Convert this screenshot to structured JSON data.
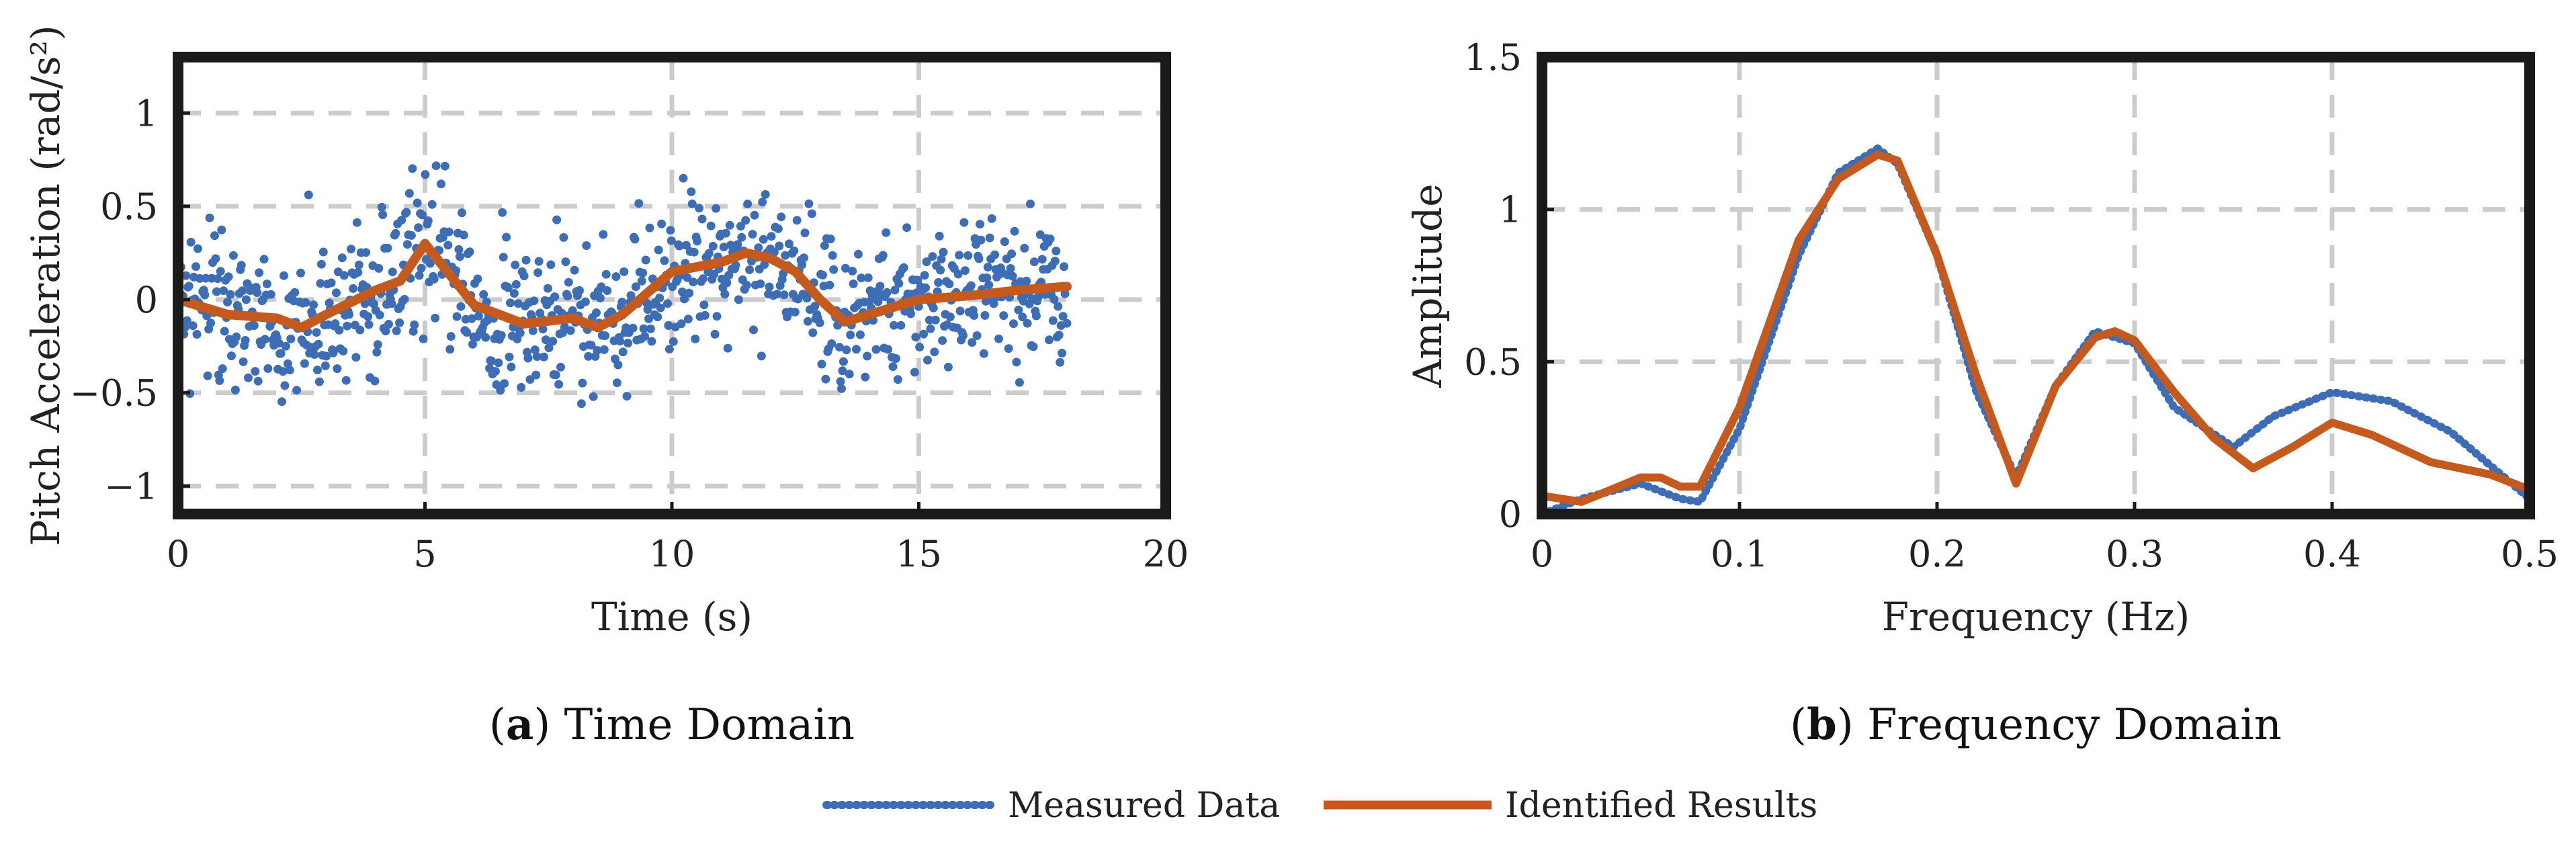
{
  "colors": {
    "measured": "#3d6db5",
    "identified": "#c55a1e",
    "grid": "#cccccc",
    "frame": "#1a1a1a"
  },
  "legend": {
    "measured_label": "Measured Data",
    "identified_label": "Identified Results"
  },
  "chart_data": [
    {
      "id": "time",
      "type": "scatter",
      "caption_letter": "a",
      "caption_text": "Time Domain",
      "xlabel": "Time (s)",
      "ylabel": "Pitch Acceleration (rad/s²)",
      "xlim": [
        0,
        20
      ],
      "ylim": [
        -1.15,
        1.3
      ],
      "xticks": [
        0,
        5,
        10,
        15,
        20
      ],
      "yticks": [
        -1,
        -0.5,
        0,
        0.5,
        1
      ],
      "xtick_labels": [
        "0",
        "5",
        "10",
        "15",
        "20"
      ],
      "ytick_labels": [
        "−1",
        "−0.5",
        "0",
        "0.5",
        "1"
      ],
      "series": [
        {
          "name": "Measured Data",
          "style": "scatter",
          "x_start": 0,
          "x_end": 18,
          "n_points": 900,
          "spread": 0.36
        },
        {
          "name": "Identified Results",
          "style": "line",
          "x": [
            0,
            1,
            2,
            2.5,
            3,
            4,
            4.5,
            5,
            5.3,
            6,
            7,
            8,
            8.5,
            9,
            10,
            11,
            11.5,
            12,
            12.5,
            13,
            13.5,
            14,
            15,
            16,
            17,
            18
          ],
          "y": [
            0,
            -0.08,
            -0.1,
            -0.15,
            -0.08,
            0.05,
            0.1,
            0.3,
            0.2,
            -0.03,
            -0.13,
            -0.1,
            -0.15,
            -0.08,
            0.15,
            0.2,
            0.25,
            0.22,
            0.15,
            0,
            -0.12,
            -0.08,
            0,
            0.02,
            0.05,
            0.07
          ]
        }
      ]
    },
    {
      "id": "freq",
      "type": "line",
      "caption_letter": "b",
      "caption_text": "Frequency Domain",
      "xlabel": "Frequency (Hz)",
      "ylabel": "Amplitude",
      "xlim": [
        0,
        0.5
      ],
      "ylim": [
        0,
        1.5
      ],
      "xticks": [
        0,
        0.1,
        0.2,
        0.3,
        0.4,
        0.5
      ],
      "yticks": [
        0,
        0.5,
        1,
        1.5
      ],
      "xtick_labels": [
        "0",
        "0.1",
        "0.2",
        "0.3",
        "0.4",
        "0.5"
      ],
      "ytick_labels": [
        "0",
        "0.5",
        "1",
        "1.5"
      ],
      "series": [
        {
          "name": "Measured Data",
          "style": "dotted",
          "x": [
            0,
            0.02,
            0.05,
            0.07,
            0.08,
            0.1,
            0.13,
            0.15,
            0.17,
            0.18,
            0.2,
            0.22,
            0.24,
            0.26,
            0.28,
            0.3,
            0.32,
            0.35,
            0.37,
            0.4,
            0.43,
            0.46,
            0.5
          ],
          "y": [
            0,
            0.05,
            0.1,
            0.05,
            0.04,
            0.28,
            0.85,
            1.12,
            1.2,
            1.15,
            0.85,
            0.4,
            0.12,
            0.42,
            0.6,
            0.56,
            0.35,
            0.22,
            0.32,
            0.4,
            0.37,
            0.27,
            0.05
          ]
        },
        {
          "name": "Identified Results",
          "style": "solid",
          "x": [
            0,
            0.02,
            0.05,
            0.06,
            0.07,
            0.08,
            0.1,
            0.13,
            0.15,
            0.17,
            0.18,
            0.2,
            0.22,
            0.24,
            0.26,
            0.28,
            0.29,
            0.3,
            0.32,
            0.34,
            0.36,
            0.38,
            0.4,
            0.42,
            0.45,
            0.48,
            0.5
          ],
          "y": [
            0.06,
            0.04,
            0.12,
            0.12,
            0.09,
            0.09,
            0.35,
            0.9,
            1.1,
            1.18,
            1.16,
            0.85,
            0.45,
            0.1,
            0.42,
            0.58,
            0.6,
            0.57,
            0.4,
            0.25,
            0.15,
            0.22,
            0.3,
            0.26,
            0.17,
            0.13,
            0.08
          ]
        }
      ]
    }
  ]
}
